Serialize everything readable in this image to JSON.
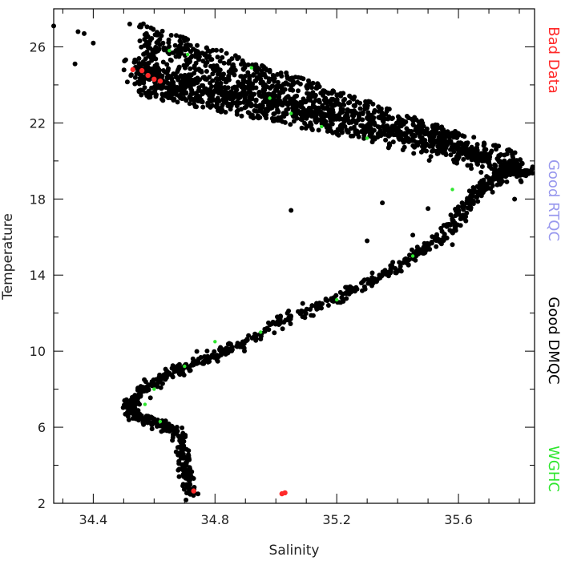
{
  "chart_data": {
    "type": "scatter",
    "title": "",
    "xlabel": "Salinity",
    "ylabel": "Temperature",
    "xlim": [
      34.27,
      35.85
    ],
    "ylim": [
      2,
      28
    ],
    "xticks": [
      34.4,
      34.8,
      35.2,
      35.6
    ],
    "yticks": [
      2,
      6,
      10,
      14,
      18,
      22,
      26
    ],
    "xtick_labels": [
      "34.4",
      "34.8",
      "35.2",
      "35.6"
    ],
    "ytick_labels": [
      "2",
      "6",
      "10",
      "14",
      "18",
      "22",
      "26"
    ],
    "grid": false,
    "legend_position": "right (vertical text outside plot)",
    "series": [
      {
        "name": "Bad Data",
        "color": "#ff2a2a",
        "points": [
          [
            34.53,
            24.8
          ],
          [
            34.56,
            24.75
          ],
          [
            34.58,
            24.5
          ],
          [
            34.6,
            24.3
          ],
          [
            34.62,
            24.2
          ],
          [
            34.73,
            2.65
          ],
          [
            35.02,
            2.5
          ],
          [
            35.03,
            2.55
          ]
        ]
      },
      {
        "name": "Good RTQC",
        "color": "#9999ee",
        "points": []
      },
      {
        "name": "Good DMQC",
        "color": "#000000",
        "clusters": [
          {
            "desc": "bottom tail",
            "path": [
              [
                34.72,
                2.5
              ],
              [
                34.71,
                3.2
              ],
              [
                34.7,
                4
              ],
              [
                34.69,
                5
              ],
              [
                34.68,
                5.7
              ],
              [
                34.64,
                6.1
              ],
              [
                34.57,
                6.3
              ],
              [
                34.52,
                6.8
              ],
              [
                34.52,
                7.2
              ],
              [
                34.55,
                7.8
              ],
              [
                34.6,
                8.4
              ],
              [
                34.66,
                8.9
              ],
              [
                34.72,
                9.3
              ],
              [
                34.8,
                9.7
              ],
              [
                34.88,
                10.3
              ],
              [
                34.98,
                11.2
              ],
              [
                35.08,
                12
              ],
              [
                35.2,
                12.8
              ],
              [
                35.3,
                13.6
              ],
              [
                35.38,
                14.3
              ],
              [
                35.45,
                14.9
              ],
              [
                35.52,
                15.7
              ],
              [
                35.58,
                16.6
              ],
              [
                35.62,
                17.6
              ],
              [
                35.67,
                18.5
              ],
              [
                35.72,
                19.1
              ],
              [
                35.8,
                19.6
              ]
            ],
            "count": 850,
            "spread": 0.012,
            "spread_t": 0.15
          },
          {
            "desc": "upper band",
            "path": [
              [
                35.82,
                19.2
              ],
              [
                35.72,
                19.9
              ],
              [
                35.6,
                20.6
              ],
              [
                35.45,
                21.3
              ],
              [
                35.3,
                22
              ],
              [
                35.15,
                22.6
              ],
              [
                35.0,
                23.1
              ],
              [
                34.85,
                23.4
              ],
              [
                34.72,
                23.7
              ],
              [
                34.62,
                24.2
              ],
              [
                34.53,
                25
              ]
            ],
            "count": 700,
            "spread": 0.025,
            "spread_t": 0.35
          },
          {
            "desc": "upper cloud",
            "box": [
              34.55,
              35.82,
              18.0,
              27.3
            ],
            "count": 1100
          },
          {
            "desc": "outliers",
            "points": [
              [
                34.27,
                27.1
              ],
              [
                34.35,
                26.8
              ],
              [
                34.37,
                26.7
              ],
              [
                34.4,
                26.2
              ],
              [
                34.34,
                25.1
              ],
              [
                34.52,
                27.2
              ],
              [
                35.05,
                17.4
              ],
              [
                35.3,
                15.8
              ],
              [
                35.45,
                16.1
              ],
              [
                35.58,
                15.6
              ],
              [
                35.5,
                17.5
              ],
              [
                35.35,
                17.8
              ]
            ]
          }
        ]
      },
      {
        "name": "WGHC",
        "color": "#2ee62e",
        "points": [
          [
            34.65,
            25.8
          ],
          [
            34.71,
            25.6
          ],
          [
            34.92,
            24.9
          ],
          [
            34.98,
            23.3
          ],
          [
            34.6,
            8.0
          ],
          [
            34.62,
            6.3
          ],
          [
            34.57,
            7.2
          ],
          [
            35.15,
            21.8
          ],
          [
            35.3,
            21.2
          ],
          [
            35.58,
            18.5
          ],
          [
            35.45,
            15.0
          ],
          [
            35.2,
            12.7
          ],
          [
            34.95,
            11.0
          ],
          [
            34.8,
            10.5
          ],
          [
            34.7,
            9.2
          ],
          [
            35.05,
            22.5
          ]
        ]
      }
    ]
  }
}
